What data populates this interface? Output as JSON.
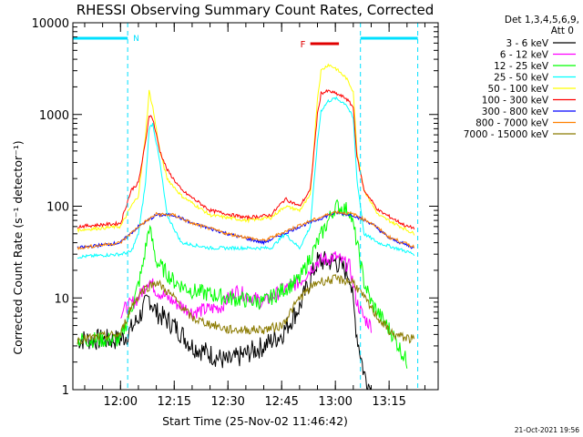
{
  "chart_data": {
    "type": "line",
    "title": "RHESSI Observing Summary Count Rates, Corrected",
    "xlabel": "Start Time (25-Nov-02 11:46:42)",
    "ylabel": "Corrected Count Rate (s⁻¹ detector⁻¹)",
    "y_scale": "log",
    "ylim": [
      1,
      10000
    ],
    "xlim_minutes_since_start": [
      0,
      102
    ],
    "x_ticks": [
      "12:00",
      "12:15",
      "12:30",
      "12:45",
      "13:00",
      "13:15"
    ],
    "y_ticks": [
      "1",
      "10",
      "100",
      "1000",
      "10000"
    ],
    "grid": false,
    "legend_position": "right",
    "legend_header": [
      "Det 1,3,4,5,6,9,",
      "Att 0"
    ],
    "timestamp": "21-Oct-2021 19:56",
    "annotations": {
      "night_label": "N",
      "flare_label": "F",
      "night_periods": [
        [
          "11:46:42",
          "12:02:00"
        ],
        [
          "13:07:00",
          "13:23:00"
        ]
      ],
      "flare_period": [
        "12:53:00",
        "13:01:00"
      ]
    },
    "colors": {
      "night_bar": "#00e0ff",
      "flare_bar": "#e00000"
    },
    "series": [
      {
        "name": "3 - 6 keV",
        "color": "#000000",
        "x": [
          "11:48",
          "12:00",
          "12:02",
          "12:05",
          "12:08",
          "12:10",
          "12:15",
          "12:20",
          "12:30",
          "12:40",
          "12:45",
          "12:50",
          "12:55",
          "13:00",
          "13:04",
          "13:06",
          "13:08",
          "13:10"
        ],
        "y": [
          3.5,
          3.5,
          4,
          6,
          10,
          7,
          5,
          3,
          2,
          3,
          4,
          8,
          25,
          25,
          18,
          4,
          1.5,
          1
        ]
      },
      {
        "name": "6 - 12 keV",
        "color": "#ff00ff",
        "x": [
          "12:00",
          "12:02",
          "12:05",
          "12:08",
          "12:10",
          "12:15",
          "12:20",
          "12:28",
          "12:32",
          "12:40",
          "12:45",
          "12:50",
          "12:55",
          "13:00",
          "13:04",
          "13:06",
          "13:08",
          "13:10"
        ],
        "y": [
          7,
          8,
          10,
          16,
          12,
          9,
          7,
          8,
          12,
          9,
          12,
          15,
          25,
          28,
          22,
          9,
          6,
          5
        ]
      },
      {
        "name": "12 - 25 keV",
        "color": "#00ff00",
        "x": [
          "11:48",
          "12:00",
          "12:02",
          "12:04",
          "12:06",
          "12:08",
          "12:10",
          "12:15",
          "12:20",
          "12:30",
          "12:40",
          "12:45",
          "12:50",
          "12:55",
          "13:00",
          "13:04",
          "13:06",
          "13:08",
          "13:10",
          "13:16",
          "13:20"
        ],
        "y": [
          3.5,
          3.5,
          6,
          10,
          20,
          60,
          25,
          15,
          12,
          10,
          9,
          12,
          16,
          40,
          100,
          90,
          40,
          15,
          9,
          4,
          2
        ]
      },
      {
        "name": "25 - 50 keV",
        "color": "#00ffff",
        "x": [
          "11:48",
          "12:00",
          "12:03",
          "12:05",
          "12:07",
          "12:08",
          "12:09",
          "12:11",
          "12:13",
          "12:17",
          "12:25",
          "12:35",
          "12:42",
          "12:46",
          "12:50",
          "12:53",
          "12:55",
          "12:56",
          "12:58",
          "13:00",
          "13:03",
          "13:05",
          "13:06",
          "13:08",
          "13:12",
          "13:20",
          "13:22"
        ],
        "y": [
          28,
          30,
          32,
          50,
          180,
          700,
          800,
          300,
          80,
          40,
          35,
          35,
          35,
          50,
          35,
          60,
          500,
          1100,
          1400,
          1500,
          1300,
          900,
          200,
          50,
          40,
          32,
          30
        ]
      },
      {
        "name": "50 - 100 keV",
        "color": "#ffff00",
        "x": [
          "11:48",
          "12:00",
          "12:03",
          "12:05",
          "12:07",
          "12:08",
          "12:09",
          "12:11",
          "12:13",
          "12:17",
          "12:25",
          "12:35",
          "12:42",
          "12:46",
          "12:50",
          "12:53",
          "12:55",
          "12:56",
          "12:58",
          "13:00",
          "13:03",
          "13:05",
          "13:06",
          "13:08",
          "13:12",
          "13:20",
          "13:22"
        ],
        "y": [
          55,
          60,
          100,
          130,
          600,
          1800,
          1200,
          400,
          200,
          130,
          80,
          70,
          75,
          100,
          90,
          130,
          1500,
          3000,
          3500,
          3200,
          2500,
          1800,
          400,
          150,
          80,
          55,
          50
        ]
      },
      {
        "name": "100 - 300 keV",
        "color": "#ff0000",
        "x": [
          "11:48",
          "12:00",
          "12:03",
          "12:05",
          "12:07",
          "12:08",
          "12:09",
          "12:11",
          "12:13",
          "12:17",
          "12:25",
          "12:35",
          "12:42",
          "12:46",
          "12:50",
          "12:53",
          "12:55",
          "12:56",
          "12:58",
          "13:00",
          "13:03",
          "13:05",
          "13:06",
          "13:08",
          "13:12",
          "13:20",
          "13:22"
        ],
        "y": [
          60,
          65,
          150,
          180,
          500,
          1000,
          900,
          400,
          250,
          150,
          90,
          75,
          80,
          120,
          100,
          150,
          1000,
          1700,
          1800,
          1700,
          1500,
          1200,
          350,
          150,
          90,
          60,
          58
        ]
      },
      {
        "name": "300 - 800 keV",
        "color": "#0000ff",
        "x": [
          "11:48",
          "12:00",
          "12:05",
          "12:10",
          "12:15",
          "12:20",
          "12:30",
          "12:40",
          "12:50",
          "13:00",
          "13:05",
          "13:10",
          "13:15",
          "13:22"
        ],
        "y": [
          35,
          40,
          60,
          80,
          80,
          65,
          50,
          40,
          60,
          85,
          80,
          65,
          45,
          35
        ]
      },
      {
        "name": "800 - 7000 keV",
        "color": "#ff8000",
        "x": [
          "11:48",
          "12:00",
          "12:05",
          "12:10",
          "12:15",
          "12:20",
          "12:30",
          "12:40",
          "12:50",
          "13:00",
          "13:05",
          "13:10",
          "13:15",
          "13:22"
        ],
        "y": [
          35,
          40,
          60,
          82,
          80,
          65,
          50,
          42,
          62,
          87,
          82,
          66,
          46,
          36
        ]
      },
      {
        "name": "7000 - 15000 keV",
        "color": "#8b7a00",
        "x": [
          "11:48",
          "12:00",
          "12:03",
          "12:06",
          "12:10",
          "12:15",
          "12:20",
          "12:30",
          "12:40",
          "12:45",
          "12:50",
          "12:55",
          "13:00",
          "13:05",
          "13:08",
          "13:12",
          "13:16",
          "13:22"
        ],
        "y": [
          3.5,
          4,
          8,
          12,
          15,
          10,
          6,
          4.5,
          4.5,
          5,
          10,
          15,
          16,
          15,
          10,
          6,
          4,
          3.5
        ]
      }
    ]
  }
}
